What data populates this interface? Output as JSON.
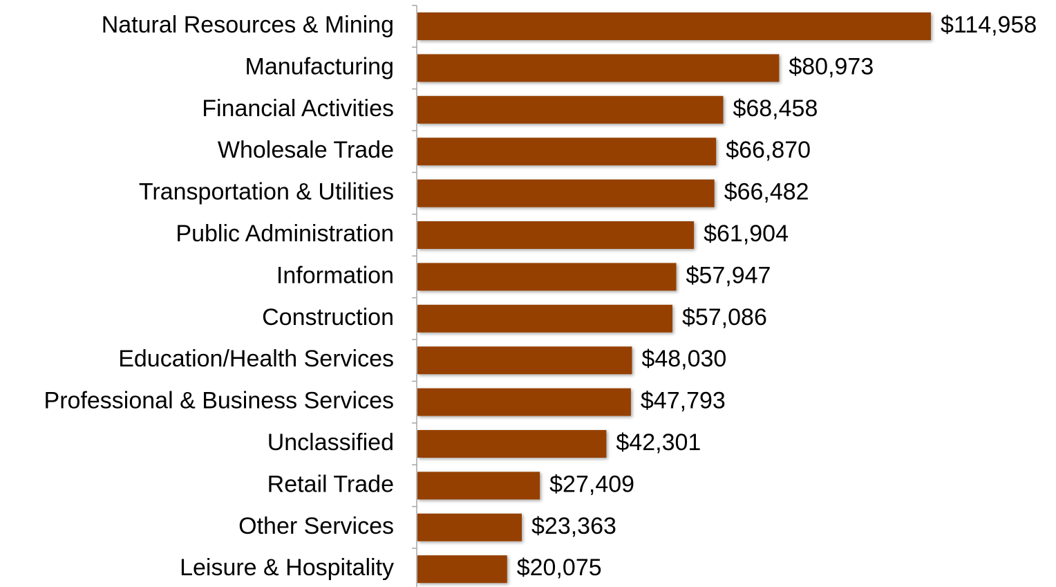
{
  "chart_data": {
    "type": "bar",
    "orientation": "horizontal",
    "categories": [
      "Natural Resources & Mining",
      "Manufacturing",
      "Financial Activities",
      "Wholesale Trade",
      "Transportation & Utilities",
      "Public Administration",
      "Information",
      "Construction",
      "Education/Health Services",
      "Professional & Business Services",
      "Unclassified",
      "Retail Trade",
      "Other Services",
      "Leisure & Hospitality"
    ],
    "values": [
      114958,
      80973,
      68458,
      66870,
      66482,
      61904,
      57947,
      57086,
      48030,
      47793,
      42301,
      27409,
      23363,
      20075
    ],
    "value_labels": [
      "$114,958",
      "$80,973",
      "$68,458",
      "$66,870",
      "$66,482",
      "$61,904",
      "$57,947",
      "$57,086",
      "$48,030",
      "$47,793",
      "$42,301",
      "$27,409",
      "$23,363",
      "$20,075"
    ],
    "color": "#954000"
  }
}
